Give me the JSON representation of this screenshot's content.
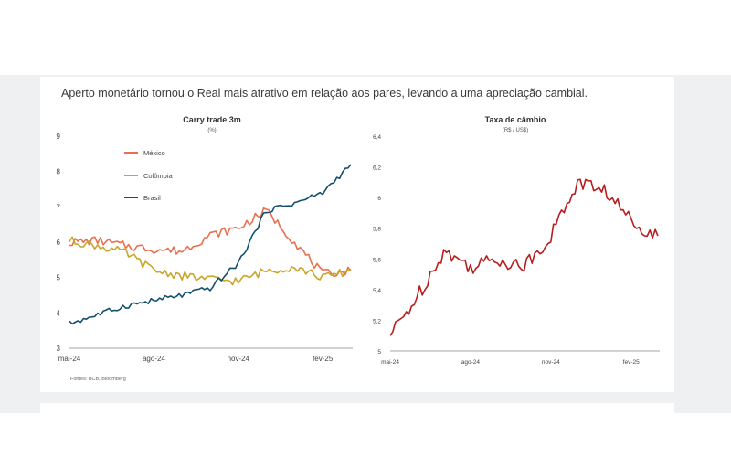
{
  "headline": "Aperto monetário tornou o Real mais atrativo em relação aos pares, levando a uma apreciação cambial.",
  "source": "Fontes: BCB, Bloomberg",
  "colors": {
    "mexico": "#e8704f",
    "colombia": "#c9a52a",
    "brasil": "#14506e",
    "fx": "#b81d1d"
  },
  "chart_data": [
    {
      "type": "line",
      "title": "Carry trade 3m",
      "subtitle": "(%)",
      "x_ticks": [
        "mai-24",
        "ago-24",
        "nov-24",
        "fev-25"
      ],
      "y_ticks": [
        "3",
        "4",
        "5",
        "6",
        "7",
        "8",
        "9"
      ],
      "ylim": [
        3,
        9
      ],
      "x": [
        "2024-05",
        "2024-06",
        "2024-07",
        "2024-08",
        "2024-09",
        "2024-10",
        "2024-11",
        "2024-12",
        "2025-01",
        "2025-02",
        "2025-03"
      ],
      "series": [
        {
          "name": "México",
          "values": [
            6.0,
            6.05,
            5.9,
            5.8,
            5.75,
            6.2,
            6.4,
            6.9,
            6.0,
            5.1,
            5.2
          ]
        },
        {
          "name": "Colômbia",
          "values": [
            6.05,
            5.9,
            5.7,
            5.2,
            5.05,
            4.95,
            4.9,
            5.2,
            5.3,
            5.0,
            5.2
          ]
        },
        {
          "name": "Brasil",
          "values": [
            3.7,
            3.95,
            4.2,
            4.35,
            4.5,
            4.7,
            5.4,
            6.9,
            7.1,
            7.4,
            8.2
          ]
        }
      ]
    },
    {
      "type": "line",
      "title": "Taxa de câmbio",
      "subtitle": "(R$ / US$)",
      "x_ticks": [
        "mai-24",
        "ago-24",
        "nov-24",
        "fev-25"
      ],
      "y_ticks": [
        "5",
        "5,2",
        "5,4",
        "5,6",
        "5,8",
        "6",
        "6,2",
        "6,4"
      ],
      "ylim": [
        5,
        6.4
      ],
      "x": [
        "2024-05",
        "2024-06",
        "2024-07",
        "2024-08",
        "2024-09",
        "2024-10",
        "2024-11",
        "2024-12",
        "2025-01",
        "2025-02",
        "2025-03"
      ],
      "series": [
        {
          "values": [
            5.1,
            5.35,
            5.65,
            5.55,
            5.6,
            5.55,
            5.75,
            6.1,
            6.05,
            5.85,
            5.75
          ]
        }
      ]
    }
  ]
}
